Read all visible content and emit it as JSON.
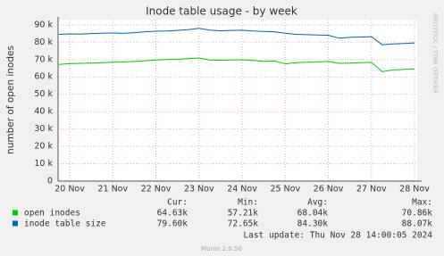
{
  "chart_data": {
    "type": "line",
    "title": "Inode table usage - by week",
    "y_label": "number of open inodes",
    "watermark": "RRDTOOL / TOBI OETIKER",
    "categories": [
      null,
      "20 Nov",
      null,
      null,
      null,
      "21 Nov",
      null,
      null,
      null,
      "22 Nov",
      null,
      null,
      null,
      "23 Nov",
      null,
      null,
      null,
      "24 Nov",
      null,
      null,
      null,
      "25 Nov",
      null,
      null,
      null,
      "26 Nov",
      null,
      null,
      null,
      "27 Nov",
      null,
      null,
      null,
      "28 Nov"
    ],
    "ylim": [
      0,
      93000
    ],
    "yticks": [
      0,
      {
        "value": 10000,
        "label": "10 k"
      },
      {
        "value": 20000,
        "label": "20 k"
      },
      {
        "value": 30000,
        "label": "30 k"
      },
      {
        "value": 40000,
        "label": "40 k"
      },
      {
        "value": 50000,
        "label": "50 k"
      },
      {
        "value": 60000,
        "label": "60 k"
      },
      {
        "value": 70000,
        "label": "70 k"
      },
      {
        "value": 80000,
        "label": "80 k"
      },
      {
        "value": 90000,
        "label": "90 k"
      }
    ],
    "grid": true,
    "stats_headers": [
      "Cur:",
      "Min:",
      "Avg:",
      "Max:"
    ],
    "series": [
      {
        "name": "open inodes",
        "color": "#00cc00",
        "values": [
          67200,
          67600,
          67800,
          68000,
          68200,
          68500,
          68600,
          68900,
          69300,
          69800,
          70000,
          70200,
          70500,
          70900,
          69800,
          69600,
          69700,
          69900,
          69500,
          69000,
          69200,
          67500,
          68300,
          68500,
          68600,
          68900,
          67800,
          68000,
          68200,
          68400,
          63000,
          64000,
          64300,
          64600
        ],
        "stats": [
          "64.63k",
          "57.21k",
          "68.04k",
          "70.86k"
        ]
      },
      {
        "name": "inode table size",
        "color": "#0066b3",
        "values": [
          84500,
          84800,
          84600,
          85000,
          85200,
          85300,
          85100,
          85500,
          86000,
          86300,
          86500,
          86800,
          87200,
          88000,
          87000,
          86600,
          86800,
          86900,
          86500,
          86200,
          86000,
          85200,
          84500,
          84300,
          84100,
          84000,
          82300,
          82800,
          83000,
          83200,
          78500,
          79000,
          79300,
          79600
        ],
        "stats": [
          "79.60k",
          "72.65k",
          "84.30k",
          "88.07k"
        ]
      }
    ],
    "last_update": "Last update: Thu Nov 28 14:00:05 2024",
    "footer": "Munin 2.0.56"
  }
}
